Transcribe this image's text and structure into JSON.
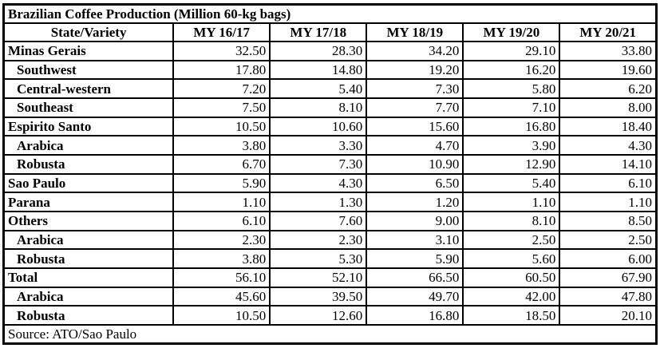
{
  "table": {
    "title": "Brazilian Coffee Production (Million 60-kg bags)",
    "columns": [
      "State/Variety",
      "MY 16/17",
      "MY 17/18",
      "MY 18/19",
      "MY 19/20",
      "MY 20/21"
    ],
    "rows": [
      {
        "label": "Minas Gerais",
        "indent": false,
        "values": [
          "32.50",
          "28.30",
          "34.20",
          "29.10",
          "33.80"
        ]
      },
      {
        "label": "Southwest",
        "indent": true,
        "values": [
          "17.80",
          "14.80",
          "19.20",
          "16.20",
          "19.60"
        ]
      },
      {
        "label": "Central-western",
        "indent": true,
        "values": [
          "7.20",
          "5.40",
          "7.30",
          "5.80",
          "6.20"
        ]
      },
      {
        "label": "Southeast",
        "indent": true,
        "values": [
          "7.50",
          "8.10",
          "7.70",
          "7.10",
          "8.00"
        ]
      },
      {
        "label": "Espirito Santo",
        "indent": false,
        "values": [
          "10.50",
          "10.60",
          "15.60",
          "16.80",
          "18.40"
        ]
      },
      {
        "label": "Arabica",
        "indent": true,
        "values": [
          "3.80",
          "3.30",
          "4.70",
          "3.90",
          "4.30"
        ]
      },
      {
        "label": "Robusta",
        "indent": true,
        "values": [
          "6.70",
          "7.30",
          "10.90",
          "12.90",
          "14.10"
        ]
      },
      {
        "label": "Sao Paulo",
        "indent": false,
        "values": [
          "5.90",
          "4.30",
          "6.50",
          "5.40",
          "6.10"
        ]
      },
      {
        "label": "Parana",
        "indent": false,
        "values": [
          "1.10",
          "1.30",
          "1.20",
          "1.10",
          "1.10"
        ]
      },
      {
        "label": "Others",
        "indent": false,
        "values": [
          "6.10",
          "7.60",
          "9.00",
          "8.10",
          "8.50"
        ]
      },
      {
        "label": "Arabica",
        "indent": true,
        "values": [
          "2.30",
          "2.30",
          "3.10",
          "2.50",
          "2.50"
        ]
      },
      {
        "label": "Robusta",
        "indent": true,
        "values": [
          "3.80",
          "5.30",
          "5.90",
          "5.60",
          "6.00"
        ]
      },
      {
        "label": "Total",
        "indent": false,
        "values": [
          "56.10",
          "52.10",
          "66.50",
          "60.50",
          "67.90"
        ]
      },
      {
        "label": "Arabica",
        "indent": true,
        "values": [
          "45.60",
          "39.50",
          "49.70",
          "42.00",
          "47.80"
        ]
      },
      {
        "label": "Robusta",
        "indent": true,
        "values": [
          "10.50",
          "12.60",
          "16.80",
          "18.50",
          "20.10"
        ]
      }
    ],
    "source": "Source: ATO/Sao Paulo",
    "colors": {
      "text": "#000000",
      "border": "#000000",
      "background": "#ffffff"
    }
  }
}
